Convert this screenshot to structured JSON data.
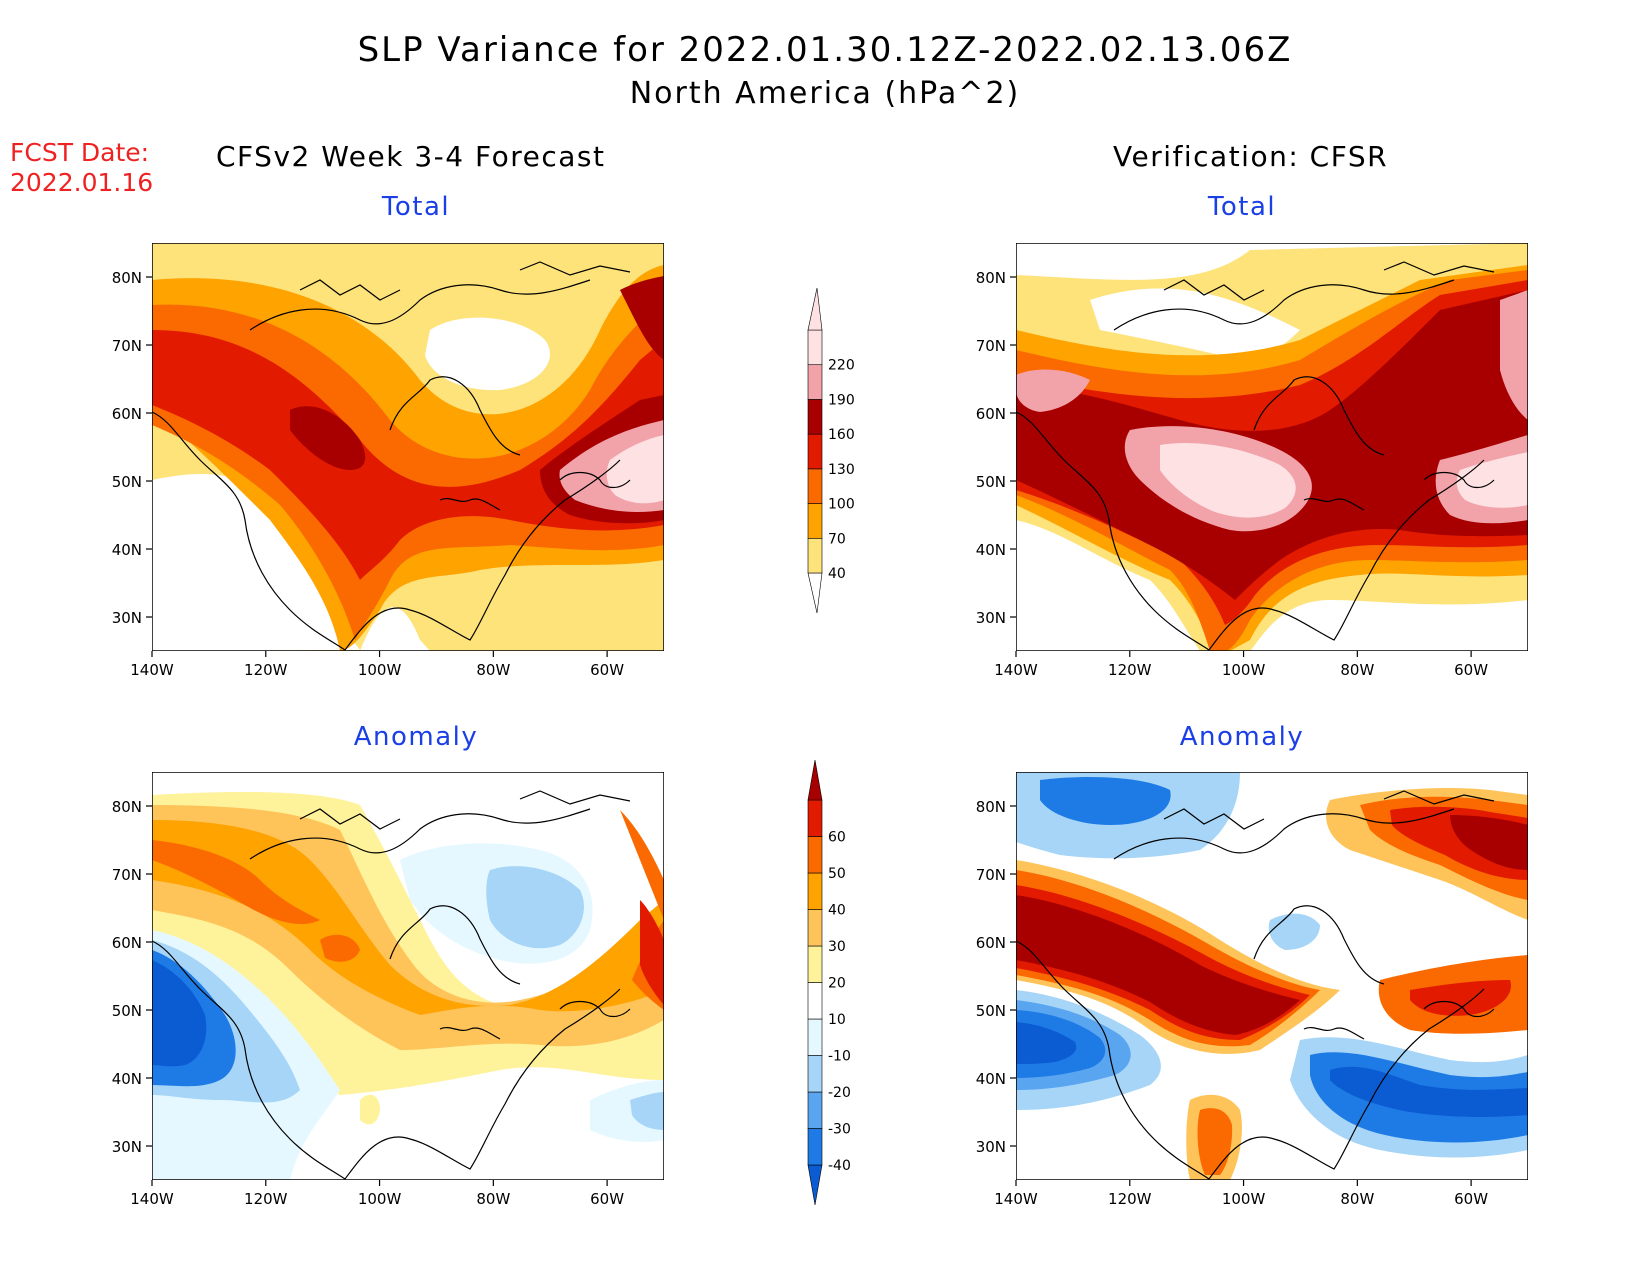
{
  "title": {
    "line1": "SLP Variance for 2022.01.30.12Z-2022.02.13.06Z",
    "line2": "North America (hPa^2)"
  },
  "fcst_date": {
    "label": "FCST Date:",
    "value": "2022.01.16"
  },
  "columns": {
    "left": "CFSv2 Week 3-4 Forecast",
    "right": "Verification: CFSR"
  },
  "panels": [
    {
      "id": "fcst-total",
      "title": "Total",
      "column": "left",
      "row": "top"
    },
    {
      "id": "verif-total",
      "title": "Total",
      "column": "right",
      "row": "top"
    },
    {
      "id": "fcst-anomaly",
      "title": "Anomaly",
      "column": "left",
      "row": "bottom"
    },
    {
      "id": "verif-anomaly",
      "title": "Anomaly",
      "column": "right",
      "row": "bottom"
    }
  ],
  "axes": {
    "lat_labels": [
      "80N",
      "70N",
      "60N",
      "50N",
      "40N",
      "30N"
    ],
    "lon_labels": [
      "140W",
      "120W",
      "100W",
      "80W",
      "60W"
    ]
  },
  "colorbars": {
    "total": {
      "levels": [
        "40",
        "70",
        "100",
        "130",
        "160",
        "190",
        "220"
      ],
      "colors": [
        "#fee27a",
        "#fea300",
        "#fa6a00",
        "#e21a00",
        "#a80000",
        "#f2a3aa",
        "#fde1e3"
      ]
    },
    "anomaly": {
      "levels": [
        "-40",
        "-30",
        "-20",
        "-10",
        "10",
        "20",
        "30",
        "40",
        "50",
        "60"
      ],
      "colors": [
        "#0b5bd3",
        "#1e7be6",
        "#59a5f0",
        "#a6d5f7",
        "#e6f8ff",
        "#ffffff",
        "#fef29a",
        "#fec45a",
        "#fea300",
        "#fa6a00",
        "#e21a00",
        "#a80000"
      ]
    }
  },
  "chart_data": {
    "type": "heatmap",
    "variable": "SLP variance",
    "units": "hPa^2",
    "x_range": [
      "140W",
      "50W"
    ],
    "y_range": [
      "25N",
      "85N"
    ]
  }
}
